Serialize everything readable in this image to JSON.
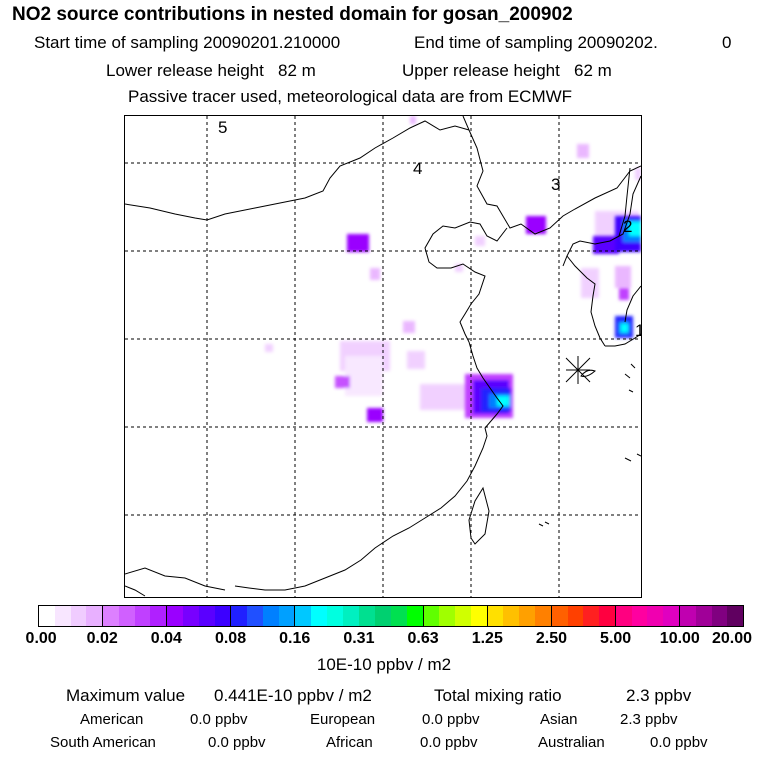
{
  "header": {
    "title": "NO2 source contributions in nested domain for gosan_200902",
    "start_label": "Start time of sampling 20090201.210000",
    "end_label": "End time of sampling 20090202.",
    "end_suffix": "0",
    "lower_label": "Lower release height   82 m",
    "upper_label": "Upper release height   62 m",
    "tracer_note": "Passive tracer used, meteorological data are from ECMWF"
  },
  "map": {
    "day_labels": [
      "5",
      "4",
      "3",
      "2",
      "1"
    ],
    "receptor_icon": "star-marker-icon"
  },
  "colorbar": {
    "ticks": [
      "0.00",
      "0.02",
      "0.04",
      "0.08",
      "0.16",
      "0.31",
      "0.63",
      "1.25",
      "2.50",
      "5.00",
      "10.00",
      "20.00"
    ],
    "unit": "10E-10 ppbv / m2",
    "colors": [
      [
        "#ffffff",
        "#f8e6ff",
        "#f0ccff",
        "#e8b0ff"
      ],
      [
        "#dd80ff",
        "#d060ff",
        "#c040ff",
        "#b020ff"
      ],
      [
        "#9a00ff",
        "#7800ff",
        "#5a00ff",
        "#3c00ff"
      ],
      [
        "#2020ff",
        "#2050ff",
        "#0080ff",
        "#00a0ff"
      ],
      [
        "#00c8ff",
        "#00ffff",
        "#00ffe0",
        "#00f0c0"
      ],
      [
        "#00e090",
        "#00d070",
        "#00e050",
        "#00ff00"
      ],
      [
        "#60ff00",
        "#a0ff00",
        "#d0ff00",
        "#ffff00"
      ],
      [
        "#ffe000",
        "#ffc000",
        "#ffa000",
        "#ff8000"
      ],
      [
        "#ff6000",
        "#ff4000",
        "#ff2020",
        "#ff0040"
      ],
      [
        "#ff0080",
        "#ff00a0",
        "#f000b0",
        "#e000c0"
      ],
      [
        "#c000b0",
        "#a00098",
        "#800080",
        "#600060"
      ]
    ]
  },
  "summary": {
    "max_label": "Maximum value",
    "max_value": "0.441E-10 ppbv / m2",
    "total_label": "Total mixing ratio",
    "total_value": "2.3 ppbv",
    "regions": [
      {
        "name": "American",
        "value": "0.0 ppbv"
      },
      {
        "name": "European",
        "value": "0.0 ppbv"
      },
      {
        "name": "Asian",
        "value": "2.3 ppbv"
      },
      {
        "name": "South American",
        "value": "0.0 ppbv"
      },
      {
        "name": "African",
        "value": "0.0 ppbv"
      },
      {
        "name": "Australian",
        "value": "0.0 ppbv"
      }
    ]
  }
}
